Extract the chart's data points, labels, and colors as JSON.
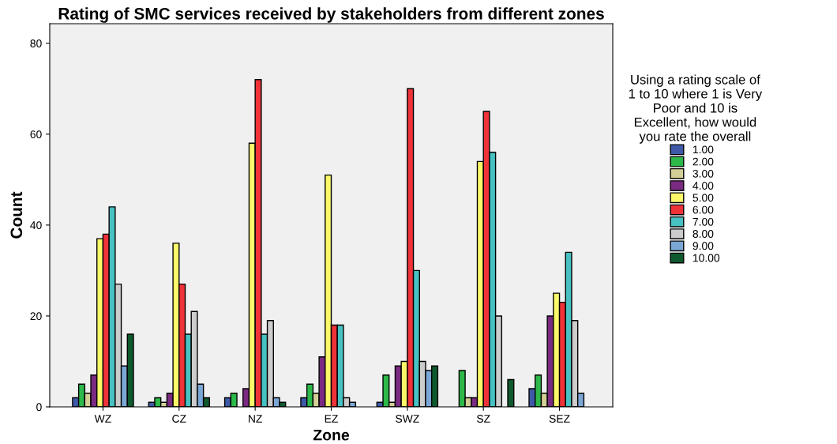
{
  "chart_data": {
    "type": "bar",
    "title": "Rating of SMC services received by stakeholders from different zones",
    "xlabel": "Zone",
    "ylabel": "Count",
    "legend_title": "Using a rating scale of\n1 to 10 where 1 is Very\nPoor and 10 is\nExcellent, how would\nyou rate the overall",
    "categories": [
      "WZ",
      "CZ",
      "NZ",
      "EZ",
      "SWZ",
      "SZ",
      "SEZ"
    ],
    "ylim": [
      0,
      84.3
    ],
    "yticks": [
      0,
      20,
      40,
      60,
      80
    ],
    "grid": false,
    "legend": "right",
    "series": [
      {
        "name": "1.00",
        "color": "#3e59a8",
        "values": [
          2,
          1,
          2,
          2,
          1,
          null,
          4
        ]
      },
      {
        "name": "2.00",
        "color": "#2db84a",
        "values": [
          5,
          2,
          3,
          5,
          7,
          8,
          7
        ]
      },
      {
        "name": "3.00",
        "color": "#d4cf96",
        "values": [
          3,
          1,
          null,
          3,
          1,
          2,
          3
        ]
      },
      {
        "name": "4.00",
        "color": "#7b2a82",
        "values": [
          7,
          3,
          4,
          11,
          9,
          2,
          20
        ]
      },
      {
        "name": "5.00",
        "color": "#fbf96a",
        "values": [
          37,
          36,
          58,
          51,
          10,
          54,
          25
        ]
      },
      {
        "name": "6.00",
        "color": "#ef3339",
        "values": [
          38,
          27,
          72,
          18,
          70,
          65,
          23
        ]
      },
      {
        "name": "7.00",
        "color": "#47c1c1",
        "values": [
          44,
          16,
          16,
          18,
          30,
          56,
          34
        ]
      },
      {
        "name": "8.00",
        "color": "#cccccc",
        "values": [
          27,
          21,
          19,
          2,
          10,
          20,
          19
        ]
      },
      {
        "name": "9.00",
        "color": "#7ba7d6",
        "values": [
          9,
          5,
          2,
          1,
          8,
          null,
          3
        ]
      },
      {
        "name": "10.00",
        "color": "#0e5a2e",
        "values": [
          16,
          2,
          1,
          null,
          9,
          6,
          null
        ]
      }
    ]
  }
}
